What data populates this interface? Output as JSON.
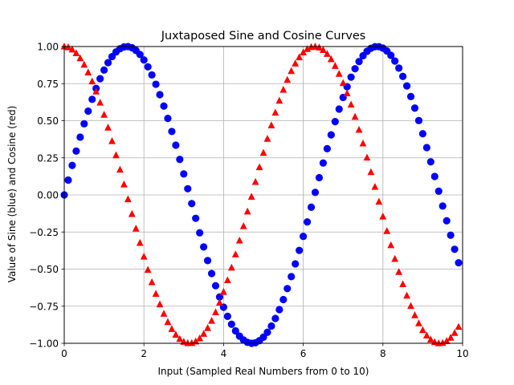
{
  "chart_data": {
    "type": "scatter",
    "title": "Juxtaposed Sine and Cosine Curves",
    "xlabel": "Input (Sampled Real Numbers from 0 to 10)",
    "ylabel": "Value of Sine (blue) and Cosine (red)",
    "xlim": [
      0,
      10
    ],
    "ylim": [
      -1,
      1
    ],
    "grid": true,
    "x_ticks": [
      0,
      2,
      4,
      6,
      8,
      10
    ],
    "x_tick_labels": [
      "0",
      "2",
      "4",
      "6",
      "8",
      "10"
    ],
    "y_ticks": [
      -1,
      -0.75,
      -0.5,
      -0.25,
      0,
      0.25,
      0.5,
      0.75,
      1
    ],
    "y_tick_labels": [
      "−1.00",
      "−0.75",
      "−0.50",
      "−0.25",
      "0.00",
      "0.25",
      "0.50",
      "0.75",
      "1.00"
    ],
    "x_step": 0.1,
    "x_count": 100,
    "series": [
      {
        "marker": "circle",
        "color": "#0000ff",
        "function": "sin",
        "values": [
          0.0,
          0.0998,
          0.1987,
          0.2955,
          0.3894,
          0.4794,
          0.5646,
          0.6442,
          0.7174,
          0.7833,
          0.8415,
          0.8912,
          0.932,
          0.9636,
          0.9854,
          0.9975,
          0.9996,
          0.9917,
          0.9738,
          0.9463,
          0.9093,
          0.8632,
          0.8085,
          0.7457,
          0.6755,
          0.5985,
          0.5155,
          0.4274,
          0.335,
          0.2392,
          0.1411,
          0.0416,
          -0.0584,
          -0.1577,
          -0.2555,
          -0.3508,
          -0.4425,
          -0.5298,
          -0.6119,
          -0.6878,
          -0.7568,
          -0.8183,
          -0.8716,
          -0.9162,
          -0.9516,
          -0.9775,
          -0.9937,
          -0.9999,
          -0.9962,
          -0.9825,
          -0.9589,
          -0.9258,
          -0.8835,
          -0.8323,
          -0.7728,
          -0.7055,
          -0.6313,
          -0.5507,
          -0.4646,
          -0.3739,
          -0.2794,
          -0.1822,
          -0.0831,
          0.0168,
          0.1165,
          0.2151,
          0.3115,
          0.4048,
          0.494,
          0.5784,
          0.657,
          0.729,
          0.7937,
          0.8504,
          0.8987,
          0.938,
          0.9679,
          0.9882,
          0.9985,
          0.9989,
          0.9894,
          0.9699,
          0.9407,
          0.9022,
          0.8546,
          0.7985,
          0.7344,
          0.663,
          0.585,
          0.501,
          0.4121,
          0.319,
          0.2229,
          0.1245,
          0.0248,
          -0.0752,
          -0.1743,
          -0.2718,
          -0.3665,
          -0.4575
        ]
      },
      {
        "marker": "triangle",
        "color": "#ff0000",
        "function": "cos",
        "values": [
          1.0,
          0.995,
          0.9801,
          0.9553,
          0.9211,
          0.8776,
          0.8253,
          0.7648,
          0.6967,
          0.6216,
          0.5403,
          0.4536,
          0.3624,
          0.2675,
          0.17,
          0.0707,
          -0.0292,
          -0.1288,
          -0.2272,
          -0.3233,
          -0.4161,
          -0.5048,
          -0.5885,
          -0.6663,
          -0.7374,
          -0.8011,
          -0.8569,
          -0.9041,
          -0.9422,
          -0.971,
          -0.99,
          -0.9991,
          -0.9983,
          -0.9875,
          -0.9668,
          -0.9365,
          -0.8968,
          -0.8481,
          -0.791,
          -0.7259,
          -0.6536,
          -0.5748,
          -0.4903,
          -0.4008,
          -0.3073,
          -0.2108,
          -0.1122,
          -0.0124,
          0.0875,
          0.1865,
          0.2837,
          0.378,
          0.4685,
          0.5544,
          0.6347,
          0.7087,
          0.7756,
          0.8347,
          0.8855,
          0.9275,
          0.9602,
          0.9833,
          0.9965,
          0.9999,
          0.9932,
          0.9766,
          0.9502,
          0.9144,
          0.8694,
          0.8157,
          0.7539,
          0.6845,
          0.6084,
          0.5261,
          0.4385,
          0.3466,
          0.2513,
          0.1534,
          0.054,
          -0.046,
          -0.1455,
          -0.2435,
          -0.3392,
          -0.4314,
          -0.5193,
          -0.602,
          -0.6787,
          -0.7486,
          -0.8111,
          -0.8654,
          -0.9111,
          -0.9477,
          -0.9748,
          -0.9922,
          -0.9997,
          -0.9972,
          -0.9847,
          -0.9624,
          -0.9304,
          -0.889
        ]
      }
    ]
  }
}
